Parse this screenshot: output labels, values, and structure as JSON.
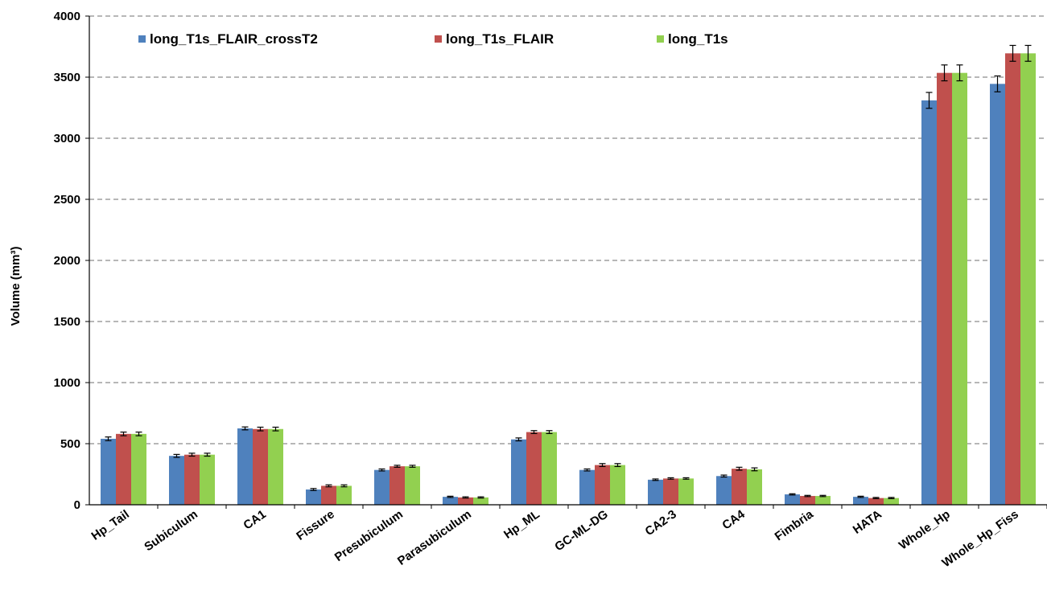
{
  "chart_data": {
    "type": "bar",
    "title": "",
    "xlabel": "",
    "ylabel": "Volume (mm³)",
    "ylim": [
      0,
      4000
    ],
    "yticks": [
      0,
      500,
      1000,
      1500,
      2000,
      2500,
      3000,
      3500,
      4000
    ],
    "grid": "horizontal dashed",
    "legend_position": "top-left",
    "categories": [
      "Hp_Tail",
      "Subiculum",
      "CA1",
      "Fissure",
      "Presubiculum",
      "Parasubiculum",
      "Hp_ML",
      "GC-ML-DG",
      "CA2-3",
      "CA4",
      "Fimbria",
      "HATA",
      "Whole_Hp",
      "Whole_Hp_Fiss"
    ],
    "series": [
      {
        "name": "long_T1s_FLAIR_crossT2",
        "color": "#4f81bd",
        "values": [
          540,
          400,
          625,
          125,
          285,
          65,
          535,
          285,
          205,
          235,
          85,
          65,
          3310,
          3445
        ],
        "errors": [
          15,
          12,
          12,
          8,
          8,
          5,
          12,
          8,
          6,
          8,
          5,
          5,
          65,
          65
        ]
      },
      {
        "name": "long_T1s_FLAIR",
        "color": "#c0504d",
        "values": [
          580,
          410,
          620,
          155,
          315,
          60,
          595,
          325,
          215,
          295,
          72,
          55,
          3535,
          3695
        ],
        "errors": [
          15,
          12,
          15,
          8,
          8,
          5,
          12,
          12,
          6,
          12,
          5,
          5,
          65,
          65
        ]
      },
      {
        "name": "long_T1s",
        "color": "#92d050",
        "values": [
          580,
          410,
          620,
          155,
          315,
          60,
          595,
          325,
          215,
          290,
          72,
          55,
          3535,
          3695
        ],
        "errors": [
          15,
          12,
          15,
          8,
          8,
          5,
          12,
          12,
          6,
          12,
          5,
          5,
          65,
          65
        ]
      }
    ]
  }
}
